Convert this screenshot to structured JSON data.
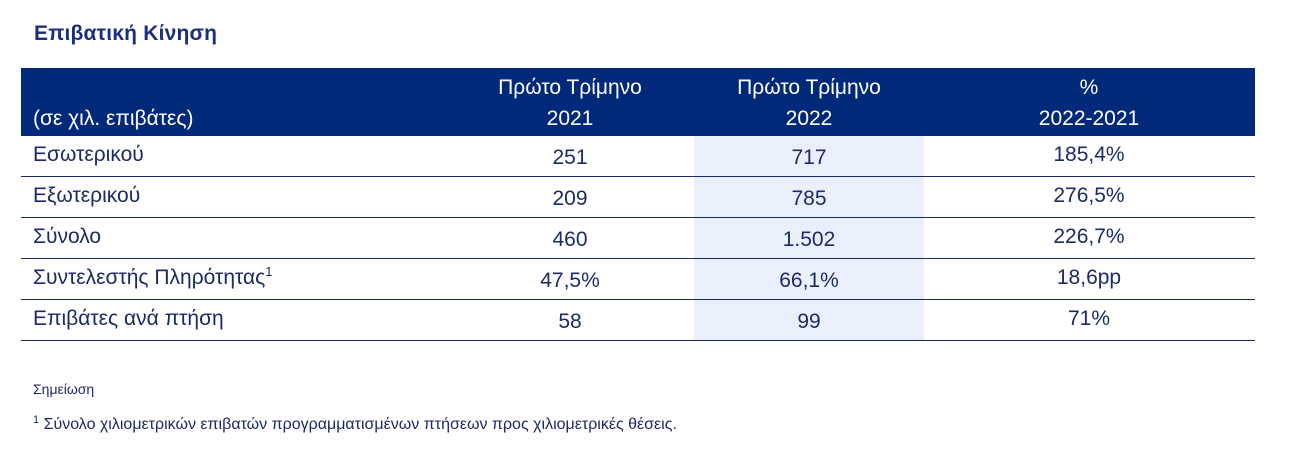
{
  "title": "Επιβατική Κίνηση",
  "table": {
    "header": {
      "unit": "(σε χιλ. επιβάτες)",
      "col1_line1": "Πρώτο Τρίμηνο",
      "col1_line2": "2021",
      "col2_line1": "Πρώτο Τρίμηνο",
      "col2_line2": "2022",
      "col3_line1": "%",
      "col3_line2": "2022-2021"
    },
    "rows": [
      {
        "label": "Εσωτερικού",
        "sup": "",
        "v2021": "251",
        "v2022": "717",
        "change": "185,4%"
      },
      {
        "label": "Εξωτερικού",
        "sup": "",
        "v2021": "209",
        "v2022": "785",
        "change": "276,5%"
      },
      {
        "label": "Σύνολο",
        "sup": "",
        "v2021": "460",
        "v2022": "1.502",
        "change": "226,7%"
      },
      {
        "label": "Συντελεστής Πληρότητας",
        "sup": "1",
        "v2021": "47,5%",
        "v2022": "66,1%",
        "change": "18,6pp"
      },
      {
        "label": "Επιβάτες ανά πτήση",
        "sup": "",
        "v2021": "58",
        "v2022": "99",
        "change": "71%"
      }
    ]
  },
  "notes": {
    "heading": "Σημείωση",
    "footnote_marker": "1",
    "footnote_text": " Σύνολο χιλιομετρικών επιβατών προγραμματισμένων πτήσεων προς χιλιομετρικές θέσεις."
  },
  "colors": {
    "header_bg": "#00297a",
    "title_text": "#1c2e7c",
    "body_text": "#1c2a66",
    "highlight_column": "#eaf0fb"
  }
}
